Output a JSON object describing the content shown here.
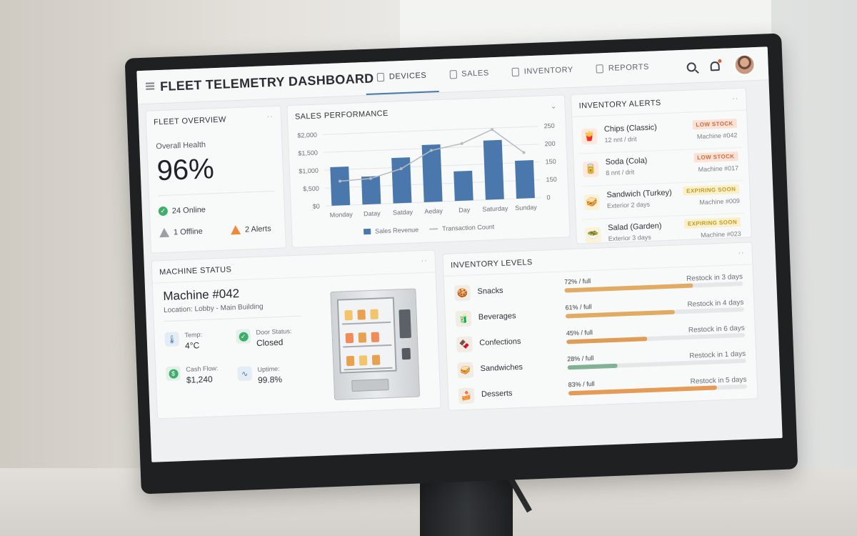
{
  "header": {
    "title": "FLEET TELEMETRY DASHBOARD",
    "nav": [
      {
        "label": "DEVICES",
        "icon": "device-icon",
        "active": true
      },
      {
        "label": "SALES",
        "icon": "sales-icon",
        "active": false
      },
      {
        "label": "INVENTORY",
        "icon": "inventory-icon",
        "active": false
      },
      {
        "label": "REPORTS",
        "icon": "reports-icon",
        "active": false
      }
    ]
  },
  "fleet_overview": {
    "title": "FLEET OVERVIEW",
    "health_label": "Overall Health",
    "health_value": "96%",
    "online": "24 Online",
    "offline": "1 Offline",
    "alerts": "2 Alerts"
  },
  "sales": {
    "title": "SALES PERFORMANCE",
    "legend_revenue": "Sales Revenue",
    "legend_transactions": "Transaction Count"
  },
  "chart_data": {
    "type": "bar",
    "title": "SALES PERFORMANCE",
    "categories": [
      "Monday",
      "Datay",
      "Satday",
      "Aeday",
      "Day",
      "Saturday",
      "Sunday"
    ],
    "series": [
      {
        "name": "Sales Revenue",
        "type": "bar",
        "axis": "left",
        "values": [
          1080,
          780,
          1270,
          1600,
          830,
          1660,
          1060
        ],
        "color": "#4a78ac"
      },
      {
        "name": "Transaction Count",
        "type": "line",
        "axis": "right",
        "values": [
          85,
          90,
          120,
          180,
          200,
          245,
          160
        ],
        "color": "#b7bcc0"
      }
    ],
    "y_left": {
      "range": [
        0,
        2000
      ],
      "ticks": [
        "$0",
        "$,500",
        "$1,000",
        "$1,500",
        "$2,000"
      ]
    },
    "y_right": {
      "range": [
        0,
        250
      ],
      "ticks": [
        "0",
        "150",
        "150",
        "200",
        "250"
      ]
    },
    "legend": "bottom"
  },
  "alerts": {
    "title": "INVENTORY ALERTS",
    "items": [
      {
        "name": "Chips (Classic)",
        "sub": "12 nnt / drit",
        "badge": "LOW STOCK",
        "kind": "low",
        "machine": "Machine #042",
        "icon": "chips-icon",
        "glyph": "🍟"
      },
      {
        "name": "Soda (Cola)",
        "sub": "8 nnt / drit",
        "badge": "LOW STOCK",
        "kind": "low",
        "machine": "Machine #017",
        "icon": "soda-icon",
        "glyph": "🥫"
      },
      {
        "name": "Sandwich (Turkey)",
        "sub": "Exterior 2 days",
        "badge": "EXPIRING SOON",
        "kind": "exp",
        "machine": "Machine #009",
        "icon": "sandwich-icon",
        "glyph": "🥪"
      },
      {
        "name": "Salad (Garden)",
        "sub": "Exterior 3 days",
        "badge": "EXPIRING SOON",
        "kind": "exp",
        "machine": "Machine #023",
        "icon": "salad-icon",
        "glyph": "🥗"
      }
    ]
  },
  "machine": {
    "title": "MACHINE STATUS",
    "name": "Machine #042",
    "location": "Location: Lobby - Main Building",
    "temp_label": "Temp:",
    "temp_value": "4°C",
    "door_label": "Door Status:",
    "door_value": "Closed",
    "cash_label": "Cash Flow:",
    "cash_value": "$1,240",
    "uptime_label": "Uptime:",
    "uptime_value": "99.8%"
  },
  "inventory": {
    "title": "INVENTORY LEVELS",
    "items": [
      {
        "name": "Snacks",
        "pct_label": "72% / full",
        "level": 0.72,
        "restock": "Restock in 3 days",
        "color": "#e3aa63",
        "icon": "snacks-icon",
        "glyph": "🍪"
      },
      {
        "name": "Beverages",
        "pct_label": "61% / full",
        "level": 0.61,
        "restock": "Restock in 4 days",
        "color": "#e3aa63",
        "icon": "beverages-icon",
        "glyph": "🧃"
      },
      {
        "name": "Confections",
        "pct_label": "45% / full",
        "level": 0.45,
        "restock": "Restock in 6 days",
        "color": "#e09b55",
        "icon": "confections-icon",
        "glyph": "🍫"
      },
      {
        "name": "Sandwiches",
        "pct_label": "28% / full",
        "level": 0.28,
        "restock": "Restock in 1 days",
        "color": "#7fb394",
        "icon": "sandwiches-icon",
        "glyph": "🥪"
      },
      {
        "name": "Desserts",
        "pct_label": "83% / full",
        "level": 0.83,
        "restock": "Restock in 5 days",
        "color": "#e59a55",
        "icon": "desserts-icon",
        "glyph": "🍰"
      }
    ]
  }
}
